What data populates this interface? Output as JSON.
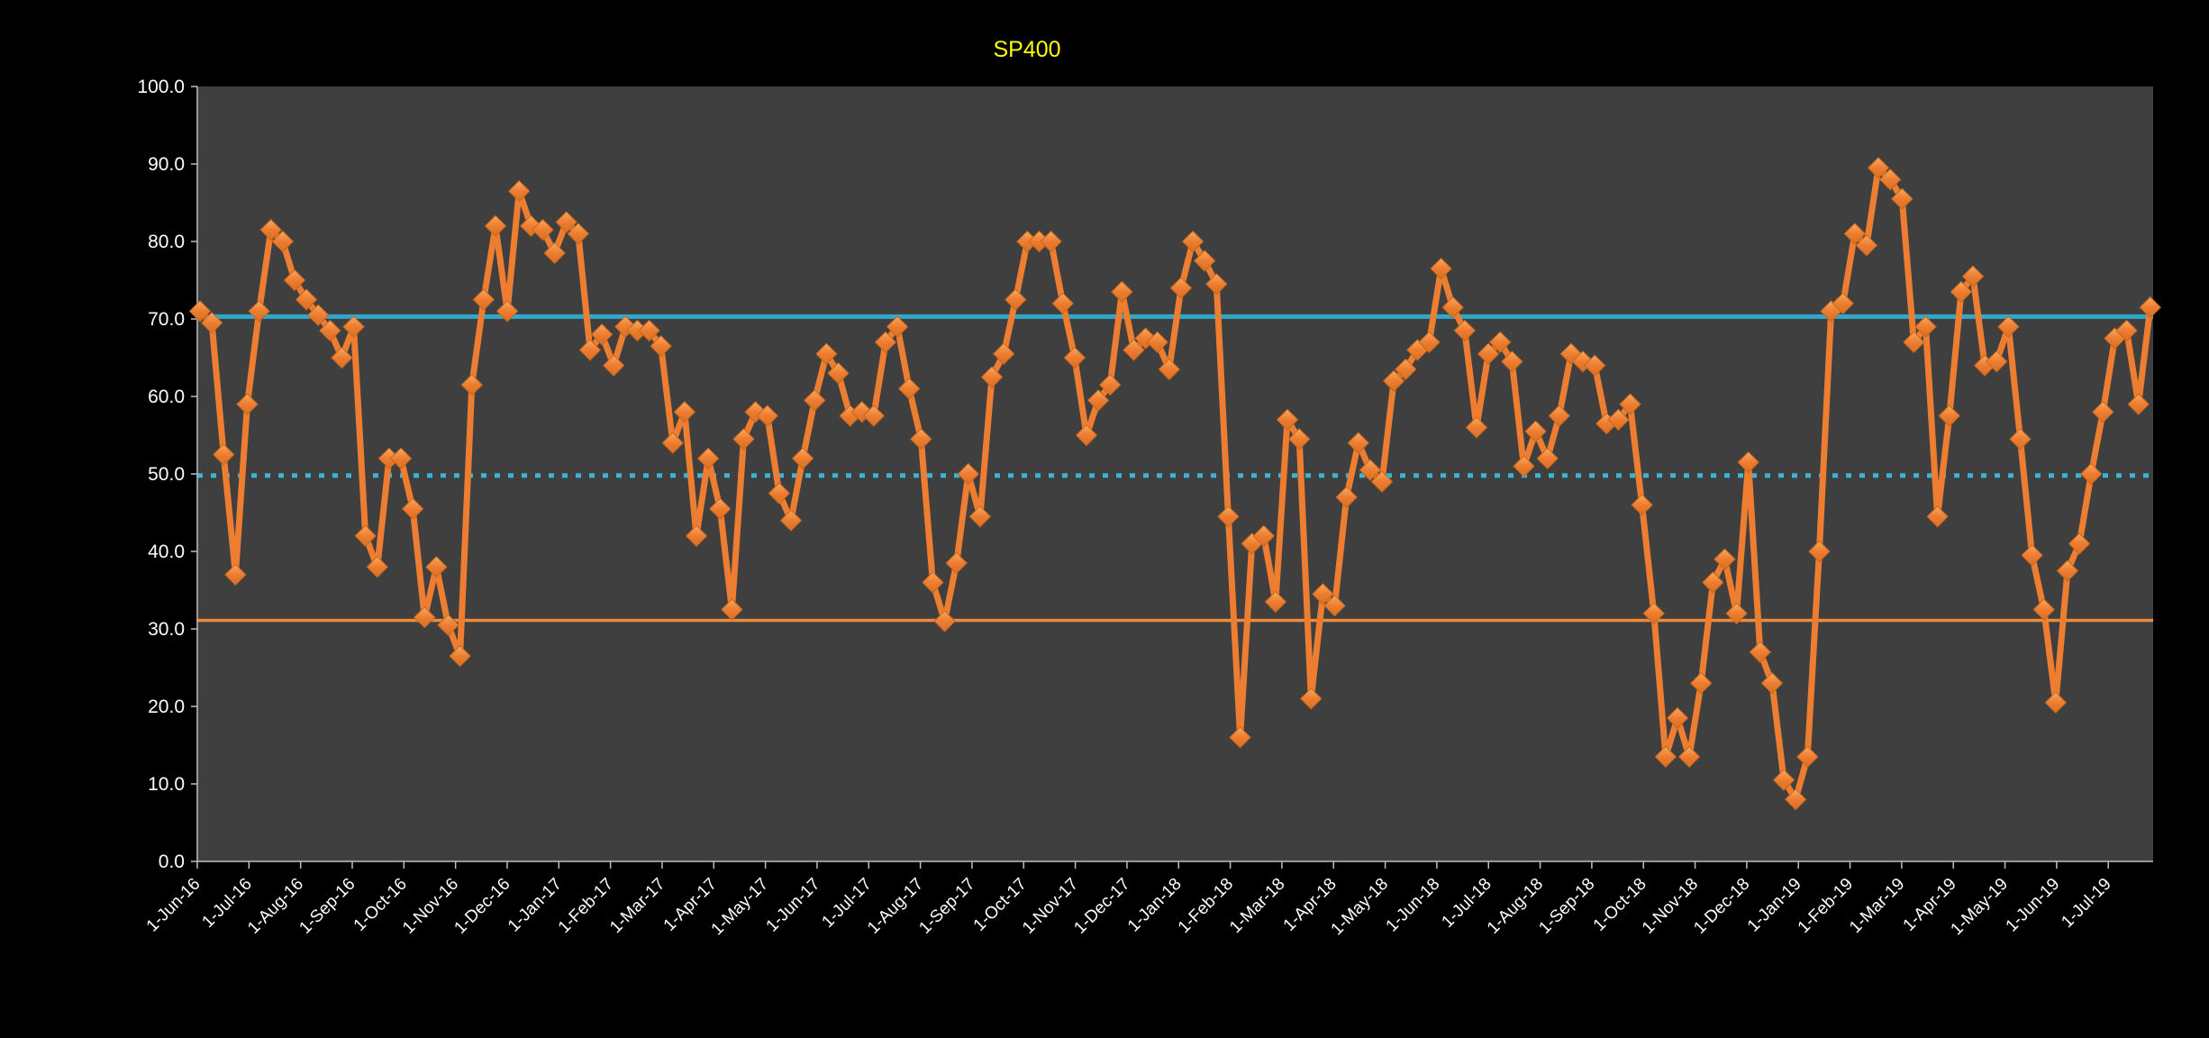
{
  "chart_data": {
    "type": "line",
    "title": "SP400",
    "title_color": "#FFFF00",
    "page_bg": "#000000",
    "plot_bg": "#3F3F3F",
    "axis_color": "#BFBFBF",
    "label_color": "#FFFFFF",
    "grid": "off",
    "legend": "none",
    "ylim": [
      0,
      100
    ],
    "y_tick_step": 10,
    "y_tick_labels": [
      "0.0",
      "10.0",
      "20.0",
      "30.0",
      "40.0",
      "50.0",
      "60.0",
      "70.0",
      "80.0",
      "90.0",
      "100.0"
    ],
    "x_tick_labels": [
      "1-Jun-16",
      "1-Jul-16",
      "1-Aug-16",
      "1-Sep-16",
      "1-Oct-16",
      "1-Nov-16",
      "1-Dec-16",
      "1-Jan-17",
      "1-Feb-17",
      "1-Mar-17",
      "1-Apr-17",
      "1-May-17",
      "1-Jun-17",
      "1-Jul-17",
      "1-Aug-17",
      "1-Sep-17",
      "1-Oct-17",
      "1-Nov-17",
      "1-Dec-17",
      "1-Jan-18",
      "1-Feb-18",
      "1-Mar-18",
      "1-Apr-18",
      "1-May-18",
      "1-Jun-18",
      "1-Jul-18",
      "1-Aug-18",
      "1-Sep-18",
      "1-Oct-18",
      "1-Nov-18",
      "1-Dec-18",
      "1-Jan-19",
      "1-Feb-19",
      "1-Mar-19",
      "1-Apr-19",
      "1-May-19",
      "1-Jun-19",
      "1-Jul-19"
    ],
    "x_note": "weekly data points from 1-Jun-16; axis labeled monthly",
    "series": [
      {
        "name": "SP400",
        "color": "#ED7D31",
        "marker": "diamond",
        "values": [
          71,
          69.5,
          52.5,
          37,
          59,
          71,
          81.5,
          80,
          75,
          72.5,
          70.5,
          68.5,
          65,
          69,
          42,
          38,
          52,
          52,
          45.5,
          31.5,
          38,
          30.5,
          26.5,
          61.5,
          72.5,
          82,
          71,
          86.5,
          82,
          81.5,
          78.5,
          82.5,
          81,
          66,
          68,
          64,
          69,
          68.5,
          68.5,
          66.5,
          54,
          58,
          42,
          52,
          45.5,
          32.5,
          54.5,
          58,
          57.5,
          47.5,
          44,
          52,
          59.5,
          65.5,
          63,
          57.5,
          58,
          57.5,
          67,
          69,
          61,
          54.5,
          36,
          31,
          38.5,
          50,
          44.5,
          62.5,
          65.5,
          72.5,
          80,
          80,
          80,
          72,
          65,
          55,
          59.5,
          61.5,
          73.5,
          66,
          67.5,
          67,
          63.5,
          74,
          80,
          77.5,
          74.5,
          44.5,
          16,
          41,
          42,
          33.5,
          57,
          54.5,
          21,
          34.5,
          33,
          47,
          54,
          50.5,
          49,
          62,
          63.5,
          66,
          67,
          76.5,
          71.5,
          68.5,
          56,
          65.5,
          67,
          64.5,
          51,
          55.5,
          52,
          57.5,
          65.5,
          64.5,
          64,
          56.5,
          57,
          59,
          46,
          32,
          13.5,
          18.5,
          13.5,
          23,
          36,
          39,
          32,
          51.5,
          27,
          23,
          10.5,
          8,
          13.5,
          40,
          71,
          72,
          81,
          79.5,
          89.5,
          88,
          85.5,
          67,
          69,
          44.5,
          57.5,
          73.5,
          75.5,
          64,
          64.5,
          69,
          54.5,
          39.5,
          32.5,
          20.5,
          37.5,
          41,
          50,
          58,
          67.5,
          68.5,
          59,
          71.5
        ]
      }
    ],
    "reference_lines": [
      {
        "name": "upper-band-line",
        "value": 70.3,
        "color": "#2FA8C9",
        "style": "solid",
        "width": 5
      },
      {
        "name": "mid-band-line",
        "value": 49.8,
        "color": "#3CB4D6",
        "style": "dotted",
        "width": 5
      },
      {
        "name": "lower-band-line",
        "value": 31.1,
        "color": "#ED8A3C",
        "style": "solid",
        "width": 3.5
      }
    ]
  }
}
